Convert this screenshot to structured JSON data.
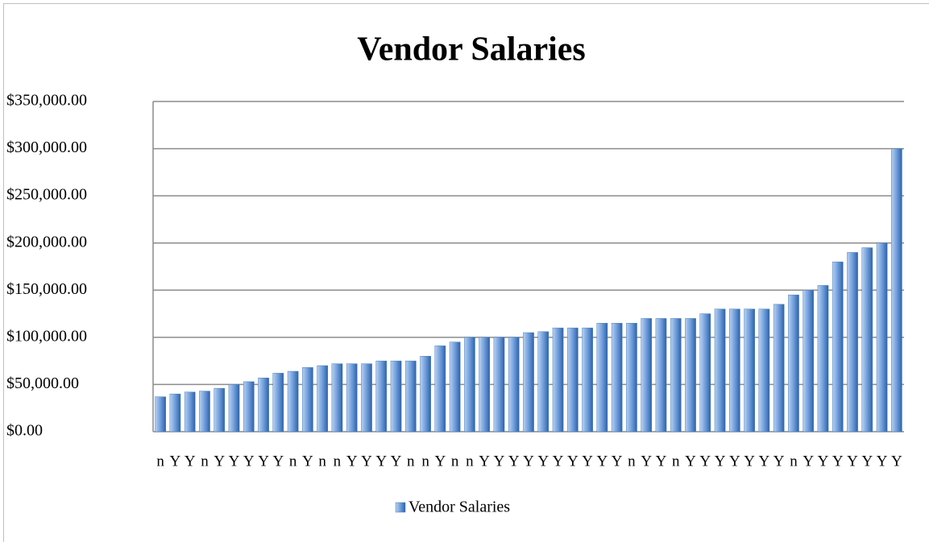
{
  "chart_data": {
    "type": "bar",
    "title": "Vendor Salaries",
    "series": [
      {
        "name": "Vendor Salaries",
        "color": "#4a7ebb",
        "values": [
          37000,
          40000,
          42000,
          43000,
          46000,
          50000,
          53000,
          57000,
          62000,
          64000,
          68000,
          70000,
          72000,
          72000,
          72000,
          75000,
          75000,
          75000,
          80000,
          91000,
          95000,
          100000,
          100000,
          100000,
          100000,
          105000,
          106000,
          110000,
          110000,
          110000,
          115000,
          115000,
          115000,
          120000,
          120000,
          120000,
          120000,
          125000,
          130000,
          130000,
          130000,
          130000,
          135000,
          145000,
          150000,
          155000,
          180000,
          190000,
          195000,
          200000,
          300000
        ]
      }
    ],
    "categories": [
      "n",
      "Y",
      "Y",
      "n",
      "Y",
      "Y",
      "Y",
      "Y",
      "Y",
      "n",
      "Y",
      "n",
      "n",
      "Y",
      "Y",
      "Y",
      "Y",
      "n",
      "n",
      "Y",
      "n",
      "n",
      "Y",
      "Y",
      "Y",
      "Y",
      "Y",
      "Y",
      "Y",
      "Y",
      "Y",
      "Y",
      "n",
      "Y",
      "Y",
      "n",
      "Y",
      "Y",
      "Y",
      "Y",
      "Y",
      "Y",
      "Y",
      "n",
      "Y",
      "Y",
      "Y",
      "Y",
      "Y",
      "Y",
      "Y"
    ],
    "ylim": [
      0,
      350000
    ],
    "yticks": [
      {
        "value": 0,
        "label": "$0.00"
      },
      {
        "value": 50000,
        "label": "$50,000.00"
      },
      {
        "value": 100000,
        "label": "$100,000.00"
      },
      {
        "value": 150000,
        "label": "$150,000.00"
      },
      {
        "value": 200000,
        "label": "$200,000.00"
      },
      {
        "value": 250000,
        "label": "$250,000.00"
      },
      {
        "value": 300000,
        "label": "$300,000.00"
      },
      {
        "value": 350000,
        "label": "$350,000.00"
      }
    ],
    "grid": true,
    "legend": "bottom"
  }
}
